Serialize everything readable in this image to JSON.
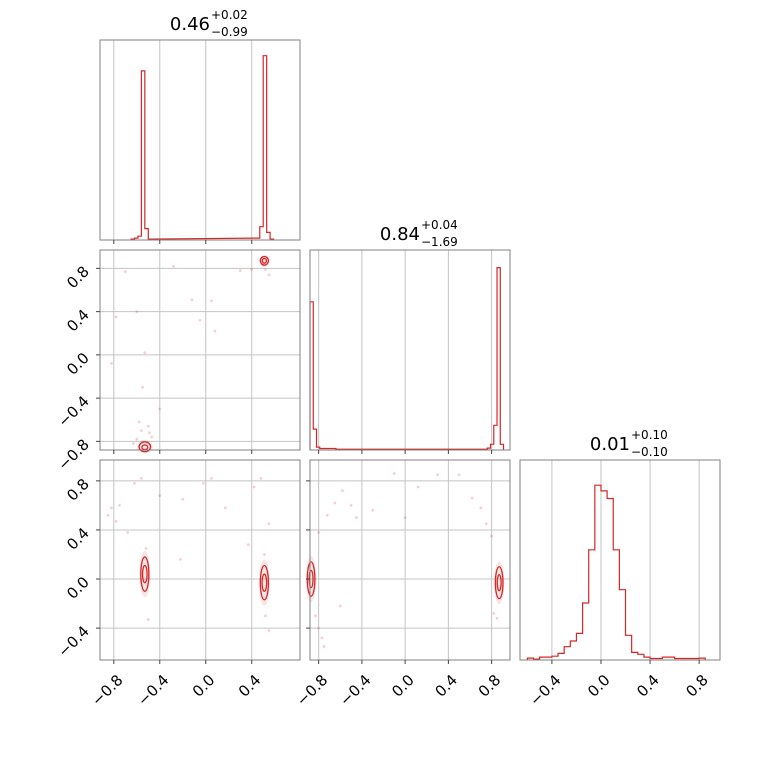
{
  "colors": {
    "series": "#d62728",
    "frame": "#808080",
    "grid": "#c4c4c4",
    "background": "#ffffff"
  },
  "chart_data": {
    "type": "corner",
    "parameters": 3,
    "titles": [
      {
        "value": "0.46",
        "plus": "+0.02",
        "minus": "−0.99"
      },
      {
        "value": "0.84",
        "plus": "+0.04",
        "minus": "−1.69"
      },
      {
        "value": "0.01",
        "plus": "+0.10",
        "minus": "−0.10"
      }
    ],
    "ranges": [
      [
        -0.92,
        0.82
      ],
      [
        -0.88,
        0.97
      ],
      [
        -0.66,
        0.97
      ]
    ],
    "ticks": [
      {
        "values": [
          -0.8,
          -0.4,
          0.0,
          0.4
        ],
        "labels": [
          "−0.8",
          "−0.4",
          "0.0",
          "0.4"
        ]
      },
      {
        "values": [
          -0.8,
          -0.4,
          0.0,
          0.4,
          0.8
        ],
        "labels": [
          "−0.8",
          "−0.4",
          "0.0",
          "0.4",
          "0.8"
        ]
      },
      {
        "values": [
          -0.4,
          0.0,
          0.4,
          0.8
        ],
        "labels": [
          "−0.4",
          "0.0",
          "0.4",
          "0.8"
        ]
      }
    ],
    "grid": true,
    "histograms": [
      {
        "param": 0,
        "bins": [
          {
            "x0": -0.65,
            "x1": -0.62,
            "h": 0.005
          },
          {
            "x0": -0.62,
            "x1": -0.59,
            "h": 0.01
          },
          {
            "x0": -0.59,
            "x1": -0.56,
            "h": 0.02
          },
          {
            "x0": -0.56,
            "x1": -0.53,
            "h": 0.89
          },
          {
            "x0": -0.53,
            "x1": -0.5,
            "h": 0.06
          },
          {
            "x0": -0.5,
            "x1": -0.47,
            "h": 0.005
          },
          {
            "x0": 0.44,
            "x1": 0.47,
            "h": 0.01
          },
          {
            "x0": 0.47,
            "x1": 0.5,
            "h": 0.07
          },
          {
            "x0": 0.5,
            "x1": 0.53,
            "h": 0.97
          },
          {
            "x0": 0.53,
            "x1": 0.56,
            "h": 0.04
          },
          {
            "x0": 0.56,
            "x1": 0.59,
            "h": 0.005
          }
        ]
      },
      {
        "param": 1,
        "bins": [
          {
            "x0": -0.88,
            "x1": -0.85,
            "h": 0.78
          },
          {
            "x0": -0.85,
            "x1": -0.82,
            "h": 0.11
          },
          {
            "x0": -0.82,
            "x1": -0.79,
            "h": 0.015
          },
          {
            "x0": -0.79,
            "x1": -0.64,
            "h": 0.008
          },
          {
            "x0": -0.64,
            "x1": 0.76,
            "h": 0.004
          },
          {
            "x0": 0.76,
            "x1": 0.79,
            "h": 0.01
          },
          {
            "x0": 0.79,
            "x1": 0.82,
            "h": 0.03
          },
          {
            "x0": 0.82,
            "x1": 0.85,
            "h": 0.13
          },
          {
            "x0": 0.85,
            "x1": 0.88,
            "h": 0.96
          },
          {
            "x0": 0.88,
            "x1": 0.91,
            "h": 0.03
          }
        ]
      },
      {
        "param": 2,
        "bins": [
          {
            "x0": -0.6,
            "x1": -0.55,
            "h": 0.01
          },
          {
            "x0": -0.55,
            "x1": -0.5,
            "h": 0.005
          },
          {
            "x0": -0.5,
            "x1": -0.45,
            "h": 0.015
          },
          {
            "x0": -0.45,
            "x1": -0.4,
            "h": 0.015
          },
          {
            "x0": -0.4,
            "x1": -0.35,
            "h": 0.02
          },
          {
            "x0": -0.35,
            "x1": -0.3,
            "h": 0.035
          },
          {
            "x0": -0.3,
            "x1": -0.25,
            "h": 0.07
          },
          {
            "x0": -0.25,
            "x1": -0.2,
            "h": 0.1
          },
          {
            "x0": -0.2,
            "x1": -0.15,
            "h": 0.14
          },
          {
            "x0": -0.15,
            "x1": -0.1,
            "h": 0.3
          },
          {
            "x0": -0.1,
            "x1": -0.05,
            "h": 0.58
          },
          {
            "x0": -0.05,
            "x1": 0.0,
            "h": 0.92
          },
          {
            "x0": 0.0,
            "x1": 0.05,
            "h": 0.89
          },
          {
            "x0": 0.05,
            "x1": 0.1,
            "h": 0.85
          },
          {
            "x0": 0.1,
            "x1": 0.15,
            "h": 0.58
          },
          {
            "x0": 0.15,
            "x1": 0.2,
            "h": 0.37
          },
          {
            "x0": 0.2,
            "x1": 0.25,
            "h": 0.13
          },
          {
            "x0": 0.25,
            "x1": 0.3,
            "h": 0.04
          },
          {
            "x0": 0.3,
            "x1": 0.35,
            "h": 0.03
          },
          {
            "x0": 0.35,
            "x1": 0.4,
            "h": 0.015
          },
          {
            "x0": 0.4,
            "x1": 0.5,
            "h": 0.008
          },
          {
            "x0": 0.5,
            "x1": 0.6,
            "h": 0.015
          },
          {
            "x0": 0.6,
            "x1": 0.8,
            "h": 0.008
          },
          {
            "x0": 0.8,
            "x1": 0.85,
            "h": 0.01
          }
        ]
      }
    ],
    "scatter_panels": [
      {
        "x_param": 0,
        "y_param": 1,
        "points": [
          [
            -0.82,
            -0.08
          ],
          [
            -0.78,
            0.35
          ],
          [
            -0.7,
            0.77
          ],
          [
            -0.6,
            0.4
          ],
          [
            -0.55,
            -0.3
          ],
          [
            -0.53,
            0.02
          ],
          [
            -0.5,
            -0.66
          ],
          [
            -0.49,
            -0.72
          ],
          [
            -0.47,
            -0.76
          ],
          [
            -0.4,
            -0.5
          ],
          [
            -0.28,
            0.82
          ],
          [
            -0.12,
            0.51
          ],
          [
            -0.05,
            0.32
          ],
          [
            0.05,
            0.5
          ],
          [
            0.08,
            0.22
          ],
          [
            0.3,
            0.78
          ],
          [
            0.4,
            0.79
          ],
          [
            0.5,
            0.83
          ],
          [
            0.52,
            0.79
          ],
          [
            0.55,
            0.74
          ],
          [
            -0.6,
            -0.78
          ],
          [
            -0.63,
            -0.82
          ],
          [
            -0.56,
            -0.7
          ],
          [
            -0.58,
            -0.62
          ]
        ],
        "contours": [
          {
            "cx": 0.51,
            "cy": 0.87,
            "rx": 0.035,
            "ry": 0.04
          },
          {
            "cx": 0.51,
            "cy": 0.87,
            "rx": 0.018,
            "ry": 0.022
          },
          {
            "cx": -0.53,
            "cy": -0.85,
            "rx": 0.05,
            "ry": 0.045
          },
          {
            "cx": -0.53,
            "cy": -0.855,
            "rx": 0.025,
            "ry": 0.022
          }
        ]
      },
      {
        "x_param": 0,
        "y_param": 2,
        "points": [
          [
            -0.85,
            0.52
          ],
          [
            -0.82,
            0.58
          ],
          [
            -0.78,
            0.47
          ],
          [
            -0.75,
            0.6
          ],
          [
            -0.68,
            0.38
          ],
          [
            -0.62,
            0.78
          ],
          [
            -0.56,
            0.82
          ],
          [
            -0.4,
            0.68
          ],
          [
            -0.2,
            0.65
          ],
          [
            -0.02,
            0.78
          ],
          [
            0.05,
            0.82
          ],
          [
            0.17,
            0.58
          ],
          [
            0.37,
            0.28
          ],
          [
            0.42,
            0.75
          ],
          [
            0.48,
            0.82
          ],
          [
            0.55,
            0.45
          ],
          [
            -0.22,
            0.16
          ],
          [
            -0.52,
            0.25
          ],
          [
            -0.5,
            -0.33
          ],
          [
            0.51,
            0.2
          ],
          [
            0.52,
            -0.3
          ],
          [
            0.55,
            -0.42
          ]
        ],
        "contours": [
          {
            "cx": -0.53,
            "cy": 0.04,
            "rx": 0.035,
            "ry": 0.14
          },
          {
            "cx": -0.53,
            "cy": 0.04,
            "rx": 0.02,
            "ry": 0.07
          },
          {
            "cx": 0.51,
            "cy": -0.03,
            "rx": 0.035,
            "ry": 0.14
          },
          {
            "cx": 0.51,
            "cy": -0.03,
            "rx": 0.02,
            "ry": 0.07
          }
        ]
      },
      {
        "x_param": 1,
        "y_param": 2,
        "points": [
          [
            -0.8,
            0.38
          ],
          [
            -0.72,
            0.52
          ],
          [
            -0.65,
            0.62
          ],
          [
            -0.58,
            0.72
          ],
          [
            -0.5,
            0.6
          ],
          [
            -0.45,
            0.5
          ],
          [
            -0.3,
            0.56
          ],
          [
            -0.1,
            0.86
          ],
          [
            0.0,
            0.5
          ],
          [
            0.12,
            0.75
          ],
          [
            0.3,
            0.85
          ],
          [
            0.5,
            0.85
          ],
          [
            0.62,
            0.66
          ],
          [
            0.7,
            0.58
          ],
          [
            0.75,
            0.45
          ],
          [
            0.8,
            0.35
          ],
          [
            -0.83,
            -0.3
          ],
          [
            -0.8,
            -0.4
          ],
          [
            -0.77,
            -0.48
          ],
          [
            -0.75,
            -0.55
          ],
          [
            -0.6,
            -0.22
          ],
          [
            0.82,
            -0.28
          ],
          [
            0.85,
            -0.32
          ]
        ],
        "contours": [
          {
            "cx": -0.87,
            "cy": 0.0,
            "rx": 0.035,
            "ry": 0.14
          },
          {
            "cx": -0.87,
            "cy": 0.0,
            "rx": 0.018,
            "ry": 0.07
          },
          {
            "cx": 0.87,
            "cy": -0.03,
            "rx": 0.035,
            "ry": 0.13
          },
          {
            "cx": 0.87,
            "cy": -0.03,
            "rx": 0.018,
            "ry": 0.065
          }
        ]
      }
    ]
  }
}
